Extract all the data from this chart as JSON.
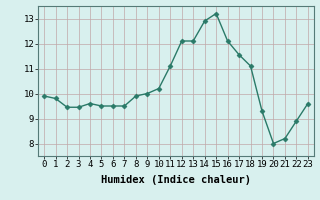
{
  "x": [
    0,
    1,
    2,
    3,
    4,
    5,
    6,
    7,
    8,
    9,
    10,
    11,
    12,
    13,
    14,
    15,
    16,
    17,
    18,
    19,
    20,
    21,
    22,
    23
  ],
  "y": [
    9.9,
    9.8,
    9.45,
    9.45,
    9.6,
    9.5,
    9.5,
    9.5,
    9.9,
    10.0,
    10.2,
    11.1,
    12.1,
    12.1,
    12.9,
    13.2,
    12.1,
    11.55,
    11.1,
    9.3,
    8.0,
    8.2,
    8.9,
    9.6
  ],
  "line_color": "#2a7a68",
  "marker": "D",
  "markersize": 2.5,
  "linewidth": 1.0,
  "xlabel": "Humidex (Indice chaleur)",
  "xlim": [
    -0.5,
    23.5
  ],
  "ylim": [
    7.5,
    13.5
  ],
  "yticks": [
    8,
    9,
    10,
    11,
    12,
    13
  ],
  "xticks": [
    0,
    1,
    2,
    3,
    4,
    5,
    6,
    7,
    8,
    9,
    10,
    11,
    12,
    13,
    14,
    15,
    16,
    17,
    18,
    19,
    20,
    21,
    22,
    23
  ],
  "bg_color": "#d8f0ee",
  "grid_color": "#c0a8a8",
  "xlabel_fontsize": 7.5,
  "tick_fontsize": 6.5
}
